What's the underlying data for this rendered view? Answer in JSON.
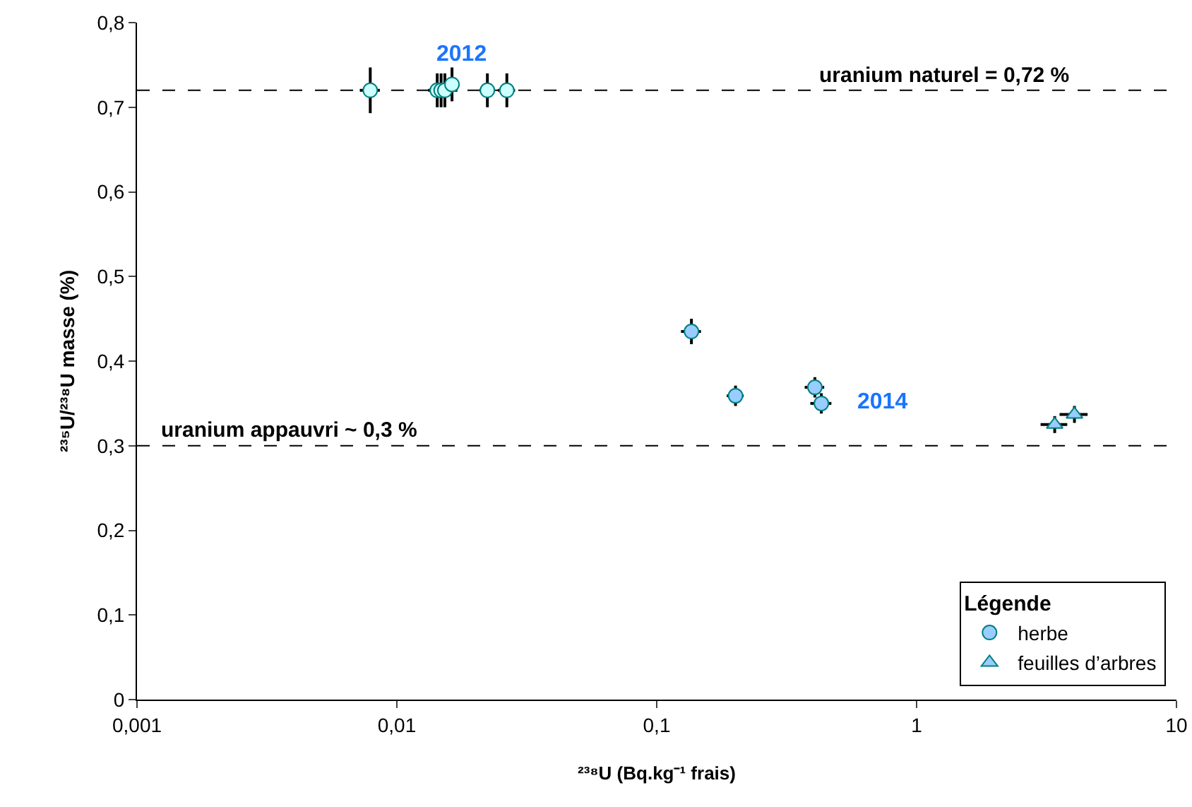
{
  "chart_data": {
    "type": "scatter",
    "xlabel": "²³⁸U (Bq.kg⁻¹ frais)",
    "ylabel": "²³⁵U/²³⁸U masse (%)",
    "legend_title": "Légende",
    "log": "x",
    "grid": false,
    "legend": "bottom right",
    "xlim": [
      0.001,
      10
    ],
    "xticks": [
      {
        "value": 0.001,
        "label": "0,001"
      },
      {
        "value": 0.01,
        "label": "0,01"
      },
      {
        "value": 0.1,
        "label": "0,1"
      },
      1,
      10
    ],
    "ylim": [
      0,
      0.8
    ],
    "yticks": [
      0,
      {
        "value": 0.1,
        "label": "0,1"
      },
      {
        "value": 0.2,
        "label": "0,2"
      },
      {
        "value": 0.3,
        "label": "0,3"
      },
      {
        "value": 0.4,
        "label": "0,4"
      },
      {
        "value": 0.5,
        "label": "0,5"
      },
      {
        "value": 0.6,
        "label": "0,6"
      },
      {
        "value": 0.7,
        "label": "0,7"
      },
      {
        "value": 0.8,
        "label": "0,8"
      }
    ],
    "series": [
      {
        "color": "#ccffff",
        "marker": "circle",
        "x": [
          0.0079,
          0.0143,
          0.0148,
          0.0153,
          0.0163,
          0.0223,
          0.0265
        ],
        "values": [
          0.72,
          0.72,
          0.72,
          0.72,
          0.727,
          0.72,
          0.72
        ],
        "errors": [
          0.027,
          0.02,
          0.02,
          0.02,
          0.02,
          0.02,
          0.02
        ],
        "xerrors": [
          0.0007,
          0.001,
          0.0016,
          0.0018,
          0.001,
          0.0015,
          0.002
        ]
      },
      {
        "name": "herbe",
        "color": "#99ccff",
        "marker": "circle",
        "x": [
          0.136,
          0.201,
          0.406,
          0.43
        ],
        "values": [
          0.435,
          0.359,
          0.369,
          0.35
        ],
        "errors": [
          0.015,
          0.012,
          0.012,
          0.012
        ],
        "xerrors": [
          0.012,
          0.015,
          0.035,
          0.04
        ]
      },
      {
        "name": "feuilles d’arbres",
        "color": "#99ccff",
        "marker": "triangle",
        "x": [
          3.4,
          4.05
        ],
        "values": [
          0.325,
          0.337
        ],
        "errors": [
          0.01,
          0.01
        ],
        "xerrors": [
          0.4,
          0.5
        ]
      }
    ],
    "ref_lines": [
      {
        "axis": "y",
        "value": 0.72,
        "label": "uranium naturel = 0,72 %",
        "line_style": "dashed"
      },
      {
        "axis": "y",
        "value": 0.3,
        "label": "uranium appauvri ~ 0,3 %",
        "line_style": "dashed"
      }
    ],
    "annotations": [
      "2012",
      "2014"
    ]
  }
}
